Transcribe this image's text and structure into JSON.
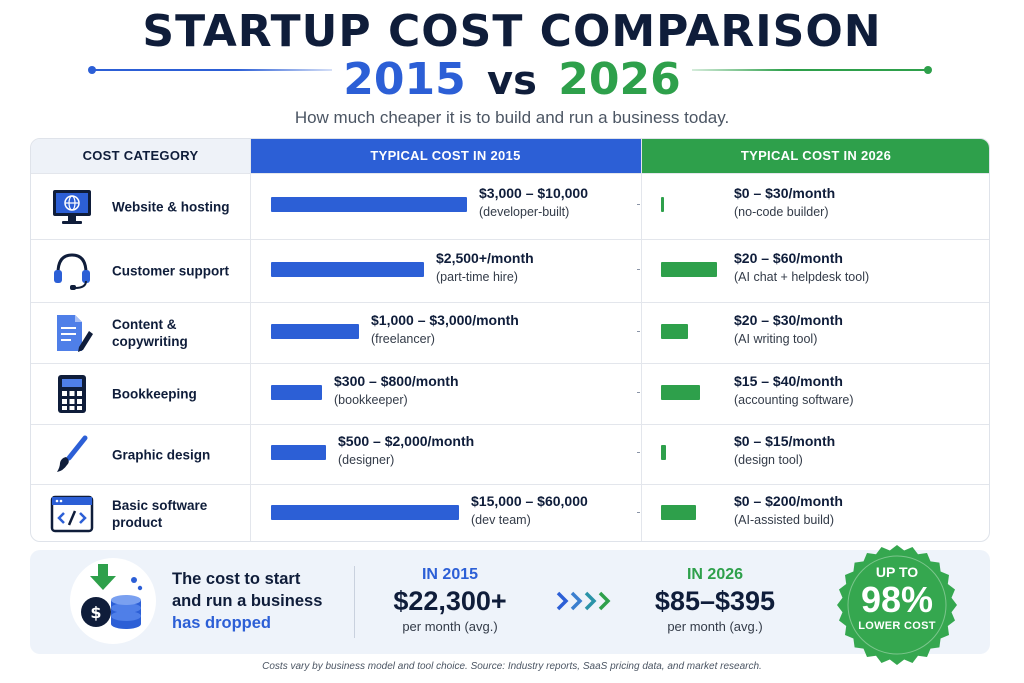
{
  "header": {
    "title": "STARTUP COST COMPARISON",
    "year_a": "2015",
    "vs": "vs",
    "year_b": "2026",
    "tagline": "How much cheaper it is to build and run a business today."
  },
  "colors": {
    "blue": "#2c5fd6",
    "green": "#2ea04b",
    "navy": "#0f1d3a",
    "badge": "#35a74f"
  },
  "table": {
    "headers": [
      "COST CATEGORY",
      "TYPICAL COST IN 2015",
      "TYPICAL COST IN 2026"
    ],
    "rows": [
      {
        "icon": "monitor-globe-icon",
        "category": "Website & hosting",
        "cost_2015": "$3,000 – $10,000",
        "note_2015": "(developer-built)",
        "cost_2026": "$0 – $30/month",
        "note_2026": "(no-code builder)"
      },
      {
        "icon": "headset-icon",
        "category": "Customer support",
        "cost_2015": "$2,500+/month",
        "note_2015": "(part-time hire)",
        "cost_2026": "$20 – $60/month",
        "note_2026": "(AI chat + helpdesk tool)"
      },
      {
        "icon": "document-pen-icon",
        "category": "Content & copywriting",
        "cost_2015": "$1,000 – $3,000/month",
        "note_2015": "(freelancer)",
        "cost_2026": "$20 – $30/month",
        "note_2026": "(AI writing tool)"
      },
      {
        "icon": "calculator-icon",
        "category": "Bookkeeping",
        "cost_2015": "$300 – $800/month",
        "note_2015": "(bookkeeper)",
        "cost_2026": "$15 – $40/month",
        "note_2026": "(accounting software)"
      },
      {
        "icon": "paintbrush-icon",
        "category": "Graphic design",
        "cost_2015": "$500 – $2,000/month",
        "note_2015": "(designer)",
        "cost_2026": "$0 – $15/month",
        "note_2026": "(design tool)"
      },
      {
        "icon": "code-window-icon",
        "category": "Basic software product",
        "cost_2015": "$15,000 – $60,000",
        "note_2015": "(dev team)",
        "cost_2026": "$0 – $200/month",
        "note_2026": "(AI-assisted build)"
      }
    ]
  },
  "chart_data": {
    "type": "bar",
    "categories": [
      "Website & hosting",
      "Customer support",
      "Content & copywriting",
      "Bookkeeping",
      "Graphic design",
      "Basic software product"
    ],
    "series": [
      {
        "name": "TYPICAL COST IN 2015",
        "relative_bar_length": [
          1.0,
          0.78,
          0.45,
          0.26,
          0.28,
          0.96
        ]
      },
      {
        "name": "TYPICAL COST IN 2026",
        "relative_bar_length": [
          0.02,
          0.42,
          0.2,
          0.29,
          0.04,
          0.26
        ]
      }
    ]
  },
  "summary": {
    "icon": "money-drop-icon",
    "line1": "The cost to start",
    "line2": "and run a business",
    "line3": "has dropped",
    "col_2015": {
      "year": "IN 2015",
      "amount": "$22,300+",
      "per": "per month (avg.)"
    },
    "col_2026": {
      "year": "IN 2026",
      "amount": "$85–$395",
      "per": "per month (avg.)"
    },
    "badge": {
      "up": "UP TO",
      "pct": "98%",
      "label": "LOWER COST"
    }
  },
  "footer": "Costs vary by business model and tool choice. Source: Industry reports, SaaS pricing data, and market research."
}
